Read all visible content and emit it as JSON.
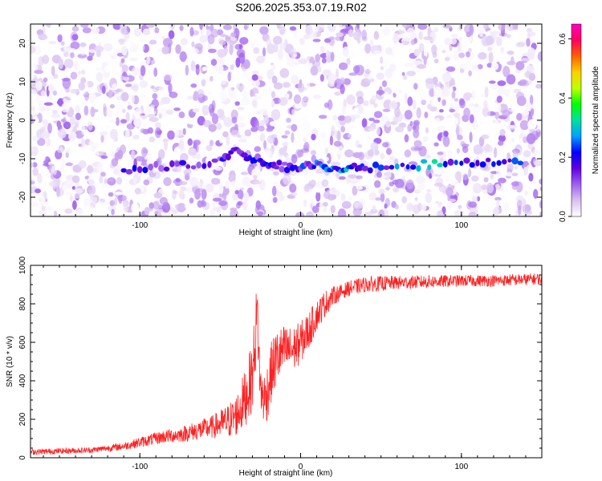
{
  "title": "S206.2025.353.07.19.R02",
  "chart_data": [
    {
      "type": "heatmap",
      "xlabel": "Height of straight line (km)",
      "ylabel": "Frequency (Hz)",
      "xlim": [
        -168,
        150
      ],
      "ylim": [
        -25,
        25
      ],
      "xticks": [
        "-100",
        "0",
        "100"
      ],
      "yticks": [
        "-20",
        "-10",
        "0",
        "10",
        "20"
      ],
      "colorbar": {
        "label": "Normalized spectral amplitude",
        "range": [
          0.0,
          0.65
        ],
        "ticks": [
          "0.0",
          "0.2",
          "0.4",
          "0.6"
        ],
        "colors": [
          "#ffffff",
          "#d8c0f0",
          "#a060f0",
          "#6000e0",
          "#0000ff",
          "#00a0ff",
          "#00e0a0",
          "#00ff00",
          "#c0ff00",
          "#ffd000",
          "#ff6000",
          "#ff0060",
          "#ff00c0"
        ]
      },
      "ridge": {
        "description_values_x": [
          -110,
          -90,
          -70,
          -50,
          -40,
          -30,
          -20,
          -10,
          0,
          10,
          20,
          30,
          40,
          60,
          80,
          100,
          120,
          140
        ],
        "frequency_hz": [
          -13,
          -12,
          -12,
          -10,
          -8,
          -10,
          -11,
          -12,
          -12,
          -12,
          -12.5,
          -12.5,
          -12.5,
          -12,
          -11.5,
          -11,
          -10.5,
          -10.5
        ],
        "peak_amplitude": [
          0.2,
          0.2,
          0.18,
          0.18,
          0.2,
          0.2,
          0.2,
          0.22,
          0.22,
          0.25,
          0.3,
          0.28,
          0.25,
          0.28,
          0.32,
          0.26,
          0.25,
          0.32
        ]
      }
    },
    {
      "type": "line",
      "xlabel": "Height of straight line (km)",
      "ylabel": "SNR (10 * v/v)",
      "xlim": [
        -168,
        150
      ],
      "ylim": [
        0,
        1000
      ],
      "xticks": [
        "-100",
        "0",
        "100"
      ],
      "yticks": [
        "0",
        "200",
        "400",
        "600",
        "800",
        "1000"
      ],
      "series": [
        {
          "color": "#ff2020",
          "x": [
            -168,
            -150,
            -130,
            -110,
            -95,
            -85,
            -75,
            -65,
            -55,
            -45,
            -40,
            -35,
            -30,
            -27,
            -25,
            -22,
            -18,
            -15,
            -10,
            -5,
            0,
            5,
            10,
            15,
            20,
            25,
            30,
            40,
            50,
            60,
            80,
            100,
            120,
            150
          ],
          "y": [
            30,
            35,
            40,
            60,
            90,
            110,
            120,
            140,
            160,
            190,
            220,
            300,
            420,
            750,
            350,
            300,
            450,
            520,
            560,
            560,
            600,
            660,
            740,
            800,
            840,
            860,
            880,
            900,
            905,
            910,
            915,
            920,
            920,
            930
          ],
          "noise": [
            15,
            15,
            15,
            20,
            30,
            35,
            40,
            50,
            60,
            90,
            110,
            150,
            180,
            200,
            120,
            150,
            160,
            150,
            130,
            120,
            110,
            100,
            80,
            70,
            50,
            40,
            40,
            40,
            40,
            35,
            35,
            30,
            30,
            30
          ]
        }
      ]
    }
  ]
}
